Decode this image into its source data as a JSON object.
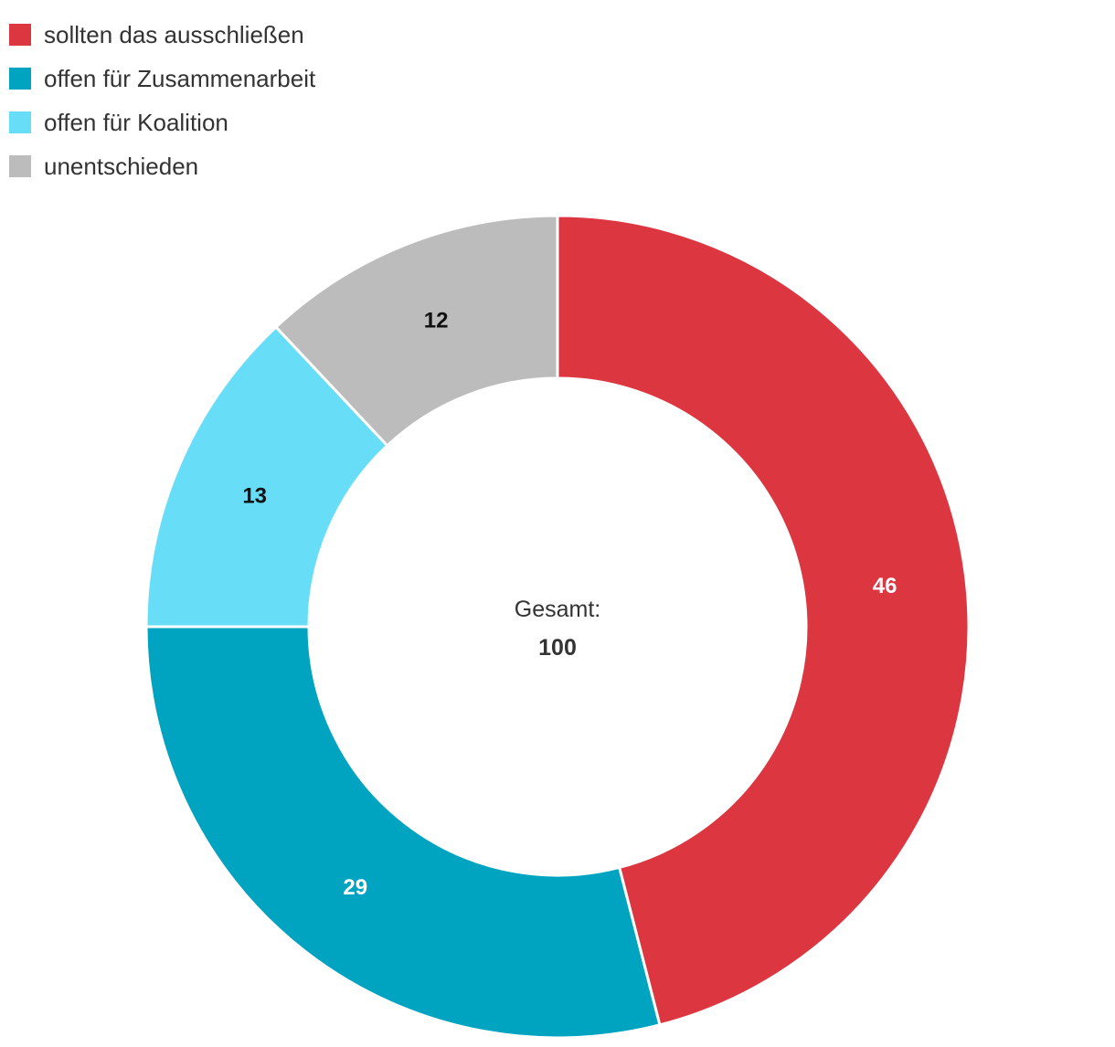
{
  "chart_data": {
    "type": "pie",
    "variant": "donut",
    "legend_position": "top-left",
    "center_label": "Gesamt:",
    "total": "100",
    "slices": [
      {
        "label": "sollten das ausschließen",
        "value": 46,
        "display": "46",
        "color": "#dc3741",
        "label_color": "#ffffff"
      },
      {
        "label": "offen für Zusammenarbeit",
        "value": 29,
        "display": "29",
        "color": "#00a3c0",
        "label_color": "#ffffff"
      },
      {
        "label": "offen für Koalition",
        "value": 13,
        "display": "13",
        "color": "#68ddf8",
        "label_color": "#111111"
      },
      {
        "label": "unentschieden",
        "value": 12,
        "display": "12",
        "color": "#bcbcbc",
        "label_color": "#111111"
      }
    ]
  }
}
